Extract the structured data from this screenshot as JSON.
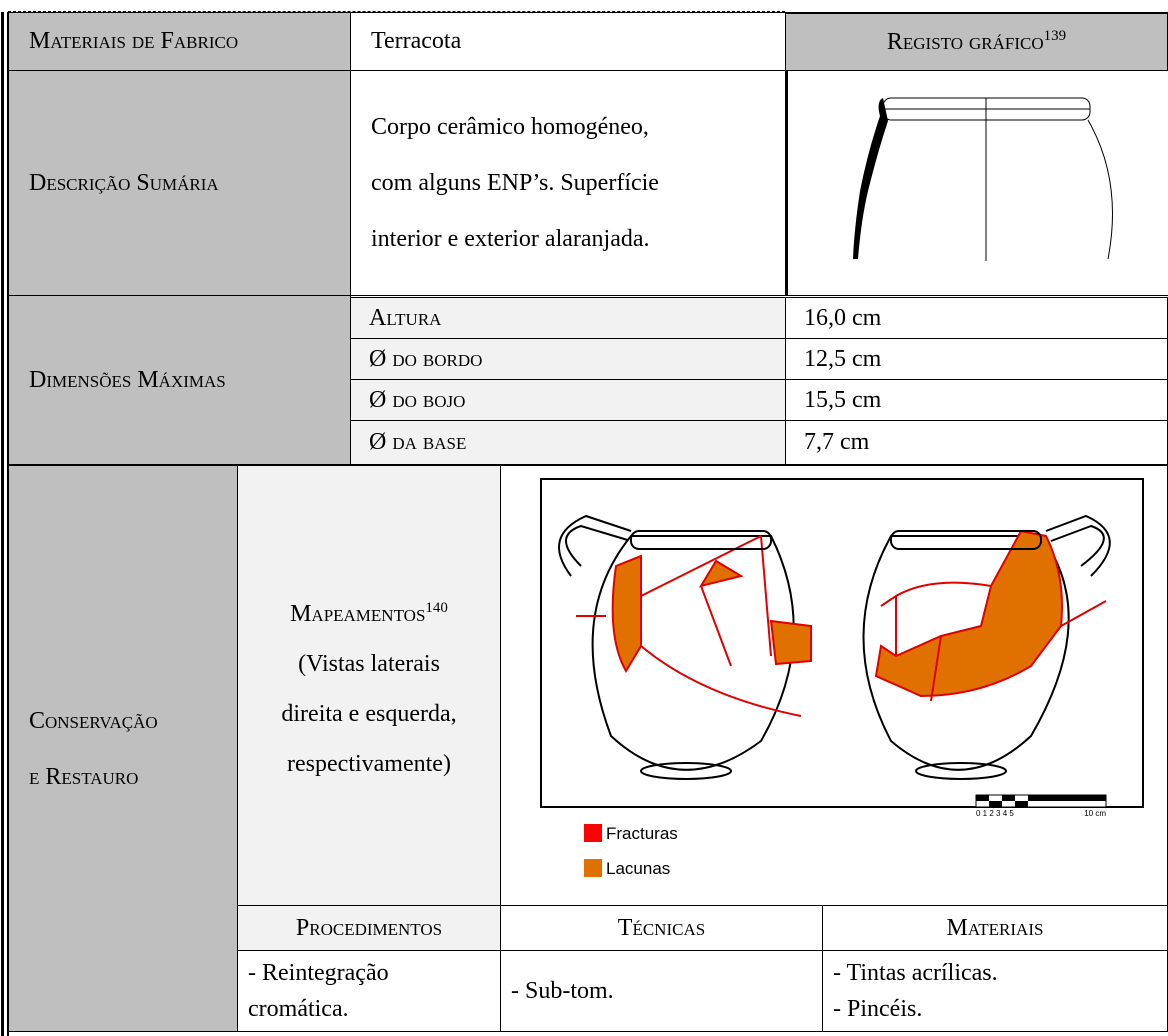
{
  "fabric": {
    "label": "Materiais de Fabrico",
    "value": "Terracota"
  },
  "graphic": {
    "label": "Registo gráfico",
    "note": "139"
  },
  "description": {
    "label": "Descrição Sumária",
    "lines": [
      "Corpo cerâmico homogéneo,",
      "com alguns ENP’s. Superfície",
      "interior e exterior alaranjada."
    ]
  },
  "dimensions": {
    "label": "Dimensões Máximas",
    "items": [
      {
        "label": "Altura",
        "value": "16,0 cm"
      },
      {
        "label": "Ø do bordo",
        "value": "12,5 cm"
      },
      {
        "label": "Ø do bojo",
        "value": "15,5 cm"
      },
      {
        "label": "Ø da base",
        "value": "7,7 cm"
      }
    ]
  },
  "conservation": {
    "label_lines": [
      "Conservação",
      "e Restauro"
    ],
    "mapping": {
      "title": "Mapeamentos",
      "note": "140",
      "lines": [
        "(Vistas laterais",
        "direita e esquerda,",
        "respectivamente)"
      ]
    },
    "legend": [
      "Fracturas",
      "Lacunas"
    ],
    "scale": [
      "0 1 2 3 4 5",
      "10 cm"
    ],
    "headers": [
      "Procedimentos",
      "Técnicas",
      "Materiais"
    ],
    "cells": [
      [
        "- Reintegração",
        "cromática."
      ],
      [
        "- Sub-tom."
      ],
      [
        "- Tintas acrílicas.",
        "- Pincéis."
      ]
    ]
  }
}
